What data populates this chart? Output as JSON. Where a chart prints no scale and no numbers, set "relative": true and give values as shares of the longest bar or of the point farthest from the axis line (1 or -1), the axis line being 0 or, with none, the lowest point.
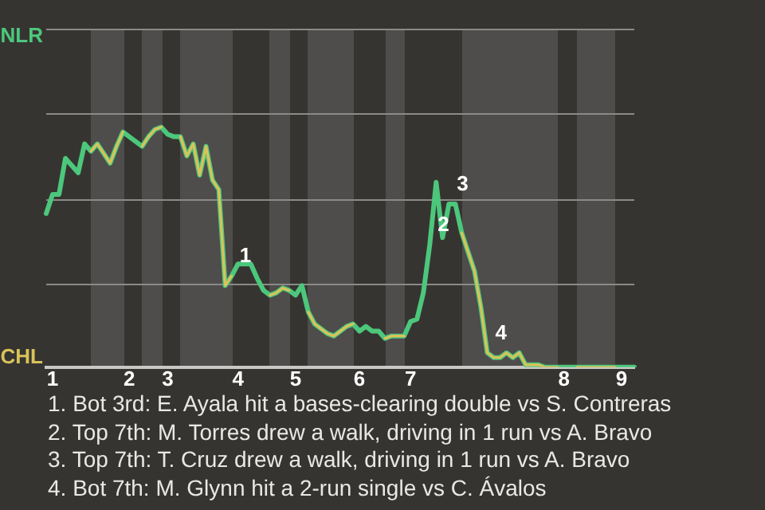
{
  "chart_data": {
    "type": "line",
    "relative": true,
    "categories": [
      null,
      "1",
      null,
      null,
      null,
      null,
      null,
      null,
      null,
      null,
      null,
      null,
      null,
      "2",
      null,
      null,
      null,
      null,
      null,
      "3",
      null,
      null,
      null,
      null,
      null,
      null,
      null,
      null,
      null,
      null,
      "4",
      null,
      null,
      null,
      null,
      null,
      null,
      null,
      null,
      "5",
      null,
      null,
      null,
      null,
      null,
      null,
      null,
      null,
      null,
      "6",
      null,
      null,
      null,
      null,
      null,
      null,
      null,
      "7",
      null,
      null,
      null,
      null,
      null,
      null,
      null,
      null,
      null,
      null,
      null,
      null,
      null,
      null,
      null,
      null,
      null,
      null,
      null,
      null,
      null,
      null,
      null,
      "8",
      null,
      null,
      null,
      null,
      null,
      null,
      null,
      null,
      "9",
      null,
      null
    ],
    "series": [
      {
        "color": "#4cc77c",
        "values": [
          0.64,
          0.72,
          0.72,
          0.87,
          0.84,
          0.81,
          0.93,
          0.9,
          0.93,
          0.89,
          0.85,
          0.92,
          0.98,
          0.96,
          0.94,
          0.92,
          0.96,
          0.99,
          1,
          0.97,
          0.96,
          0.96,
          0.88,
          0.93,
          0.8,
          0.92,
          0.78,
          0.74,
          0.34,
          0.38,
          0.43,
          0.43,
          0.43,
          0.37,
          0.32,
          0.3,
          0.31,
          0.33,
          0.32,
          0.3,
          0.34,
          0.23,
          0.18,
          0.16,
          0.14,
          0.13,
          0.15,
          0.17,
          0.18,
          0.15,
          0.17,
          0.15,
          0.15,
          0.12,
          0.13,
          0.13,
          0.13,
          0.19,
          0.2,
          0.31,
          0.51,
          0.77,
          0.54,
          0.68,
          0.68,
          0.56,
          0.48,
          0.4,
          0.25,
          0.06,
          0.04,
          0.04,
          0.06,
          0.04,
          0.06,
          0.01,
          0.01,
          0.01,
          0,
          0,
          0,
          0,
          0,
          0,
          0,
          0,
          0,
          0,
          0,
          0,
          0,
          0,
          0
        ]
      },
      {
        "color": "#d9c35a",
        "values": [
          null,
          null,
          null,
          null,
          null,
          null,
          null,
          0.9,
          0.93,
          0.89,
          0.85,
          0.92,
          0.98,
          null,
          null,
          0.92,
          0.96,
          0.99,
          1,
          null,
          null,
          0.96,
          0.88,
          0.93,
          0.8,
          0.92,
          0.78,
          0.74,
          0.34,
          0.38,
          null,
          null,
          null,
          null,
          null,
          0.3,
          0.31,
          0.33,
          0.32,
          null,
          null,
          0.23,
          0.18,
          0.16,
          0.14,
          0.13,
          0.15,
          0.17,
          0.18,
          null,
          null,
          null,
          null,
          0.12,
          0.13,
          0.13,
          0.13,
          null,
          null,
          null,
          null,
          null,
          null,
          null,
          null,
          0.56,
          0.48,
          0.4,
          0.25,
          0.06,
          0.04,
          0.04,
          0.06,
          0.04,
          0.06,
          0.01,
          0.01,
          0.01,
          0,
          0,
          0,
          null,
          null,
          0,
          0,
          0,
          0,
          0,
          0,
          0,
          null,
          null,
          null
        ]
      }
    ],
    "ref_lines": [
      {
        "axis": "y",
        "value": 0.35,
        "color": "#8a8a88"
      },
      {
        "axis": "y",
        "value": 0.7,
        "color": "#8a8a88"
      },
      {
        "axis": "y",
        "value": 1.06,
        "color": "#8a8a88"
      },
      {
        "axis": "y",
        "value": 1.41,
        "color": "#8a8a88"
      }
    ],
    "marker": "none",
    "annotations": [
      "NLR",
      "CHL",
      {
        "text": "1",
        "y": 0.38
      },
      {
        "text": "2",
        "y": 0.51
      },
      {
        "text": "3",
        "y": 0.68
      },
      {
        "text": "4",
        "y": 0.06
      },
      "1. Bot 3rd: E. Ayala hit a bases-clearing double vs S. Contreras",
      "2. Top 7th: M. Torres drew a walk, driving in 1 run vs A. Bravo",
      "3. Top 7th: T. Cruz drew a walk, driving in 1 run vs A. Bravo",
      "4. Bot 7th: M. Glynn hit a 2-run single vs C. Ávalos"
    ]
  }
}
